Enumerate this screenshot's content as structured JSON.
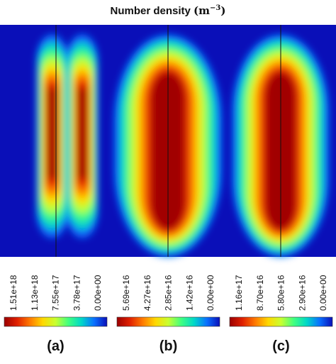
{
  "title_text": "Number density",
  "title_unit_base": "(m",
  "title_unit_exp": "−3",
  "title_unit_close": ")",
  "colormap": [
    "#9b0000",
    "#e02000",
    "#ff7a00",
    "#ffd800",
    "#c8ff30",
    "#40ff80",
    "#00d8c8",
    "#0a70ff",
    "#0a0fb8"
  ],
  "background_color": "#0a0fb8",
  "chart_data": [
    {
      "type": "heatmap",
      "panel_label": "(a)",
      "description_plumes": [
        {
          "center": 0.155,
          "half_width": 0.028,
          "peak_top": 0.33,
          "peak_bottom": 0.6,
          "start": 0.04,
          "end": 0.92,
          "peak_value": 1.51e+18
        },
        {
          "center": 0.245,
          "half_width": 0.028,
          "peak_top": 0.33,
          "peak_bottom": 0.6,
          "start": 0.04,
          "end": 0.92,
          "peak_value": 1.51e+18
        }
      ],
      "colorbar_ticks": [
        "1.51e+18",
        "1.13e+18",
        "7.55e+17",
        "3.78e+17",
        "0.00e+00"
      ],
      "vmin": 0,
      "vmax": 1.51e+18
    },
    {
      "type": "heatmap",
      "panel_label": "(b)",
      "description_plumes": [
        {
          "center": 0.5,
          "half_width": 0.095,
          "peak_top": 0.25,
          "peak_bottom": 0.85,
          "start": 0.04,
          "end": 1.0,
          "peak_value": 5.69e+16
        }
      ],
      "colorbar_ticks": [
        "5.69e+16",
        "4.27e+16",
        "2.85e+16",
        "1.42e+16",
        "0.00e+00"
      ],
      "vmin": 0,
      "vmax": 5.69e+16
    },
    {
      "type": "heatmap",
      "panel_label": "(c)",
      "description_plumes": [
        {
          "center": 0.835,
          "half_width": 0.085,
          "peak_top": 0.25,
          "peak_bottom": 0.85,
          "start": 0.04,
          "end": 1.0,
          "peak_value": 1.16e+17
        }
      ],
      "colorbar_ticks": [
        "1.16e+17",
        "8.70e+16",
        "5.80e+16",
        "2.90e+16",
        "0.00e+00"
      ],
      "vmin": 0,
      "vmax": 1.16e+17
    }
  ]
}
